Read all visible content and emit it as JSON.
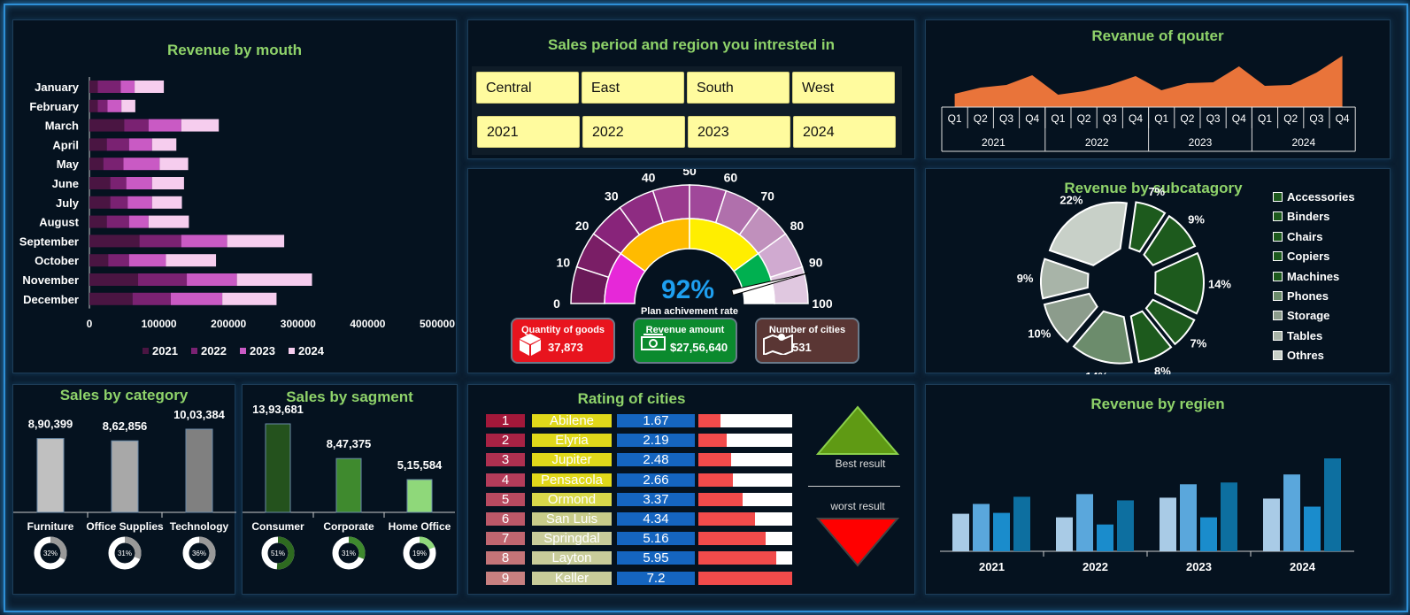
{
  "revenue_by_month": {
    "title": "Revenue by mouth",
    "months": [
      "January",
      "February",
      "March",
      "April",
      "May",
      "June",
      "July",
      "August",
      "September",
      "October",
      "November",
      "December"
    ],
    "series": [
      {
        "name": "2021",
        "color": "#4a1542",
        "values": [
          12000,
          12000,
          50000,
          25000,
          20000,
          30000,
          30000,
          25000,
          72000,
          27000,
          70000,
          62000
        ]
      },
      {
        "name": "2022",
        "color": "#7a2272",
        "values": [
          33000,
          14000,
          35000,
          32000,
          29000,
          23000,
          25000,
          32000,
          60000,
          30000,
          70000,
          55000
        ]
      },
      {
        "name": "2023",
        "color": "#c95ac4",
        "values": [
          20000,
          20000,
          47000,
          33000,
          52000,
          37000,
          35000,
          28000,
          66000,
          53000,
          72000,
          74000
        ]
      },
      {
        "name": "2024",
        "color": "#f6cdee",
        "values": [
          42000,
          20000,
          54000,
          35000,
          41000,
          46000,
          43000,
          58000,
          82000,
          72000,
          108000,
          78000
        ]
      }
    ],
    "ticks": [
      "0",
      "100000",
      "200000",
      "300000",
      "400000",
      "500000"
    ],
    "xmax": 500000
  },
  "slicer": {
    "title": "Sales period and region you intrested in",
    "regions": [
      "Central",
      "East",
      "South",
      "West"
    ],
    "years": [
      "2021",
      "2022",
      "2023",
      "2024"
    ]
  },
  "quarter": {
    "title": "Revanue of qouter",
    "color": "#e9743a",
    "quarters": [
      "Q1",
      "Q2",
      "Q3",
      "Q4",
      "Q1",
      "Q2",
      "Q3",
      "Q4",
      "Q1",
      "Q2",
      "Q3",
      "Q4",
      "Q1",
      "Q2",
      "Q3",
      "Q4"
    ],
    "years": [
      "2021",
      "2022",
      "2023",
      "2024"
    ],
    "values": [
      15,
      22,
      25,
      36,
      14,
      18,
      25,
      35,
      19,
      27,
      28,
      46,
      24,
      25,
      39,
      58
    ]
  },
  "gauge": {
    "ticks": [
      "0",
      "10",
      "20",
      "30",
      "40",
      "50",
      "60",
      "70",
      "80",
      "90",
      "100"
    ],
    "value_text": "92%",
    "value": 92,
    "caption": "Plan achivement rate"
  },
  "kpis": [
    {
      "title": "Quantity of goods",
      "value": "37,873",
      "bg": "#e8141e",
      "icon": "box-icon"
    },
    {
      "title": "Revenue amount",
      "value": "$27,56,640",
      "bg": "#0b8a2e",
      "icon": "cash-icon"
    },
    {
      "title": "Number of cities",
      "value": "531",
      "bg": "#5a3634",
      "icon": "map-icon"
    }
  ],
  "subcategory": {
    "title": "Revenue by  subcatagory",
    "legend": [
      "Accessories",
      "Binders",
      "Chairs",
      "Copiers",
      "Machines",
      "Phones",
      "Storage",
      "Tables",
      "Othres"
    ],
    "legend_colors": [
      "#1d5a1d",
      "#1d5a1d",
      "#1d5a1d",
      "#1d5a1d",
      "#1d5a1d",
      "#6c8c6c",
      "#8c9c8c",
      "#a8b4a8",
      "#c8d0c8"
    ],
    "slices": [
      {
        "pct": 7,
        "label": "7%",
        "color": "#1d5a1d"
      },
      {
        "pct": 9,
        "label": "9%",
        "color": "#1d5a1d"
      },
      {
        "pct": 14,
        "label": "14%",
        "color": "#1d5a1d"
      },
      {
        "pct": 7,
        "label": "7%",
        "color": "#1d5a1d"
      },
      {
        "pct": 8,
        "label": "8%",
        "color": "#1d5a1d"
      },
      {
        "pct": 14,
        "label": "14%",
        "color": "#6c8c6c"
      },
      {
        "pct": 10,
        "label": "10%",
        "color": "#8c9c8c"
      },
      {
        "pct": 9,
        "label": "9%",
        "color": "#a8b4a8"
      },
      {
        "pct": 22,
        "label": "22%",
        "color": "#c8d0c8"
      }
    ]
  },
  "category": {
    "title": "Sales by category",
    "items": [
      {
        "name": "Furniture",
        "value": 890399,
        "label": "8,90,399",
        "color": "#c0c0c0",
        "pct": "32%",
        "pct_val": 32
      },
      {
        "name": "Office Supplies",
        "value": 862856,
        "label": "8,62,856",
        "color": "#a8a8a8",
        "pct": "31%",
        "pct_val": 31
      },
      {
        "name": "Technology",
        "value": 1003384,
        "label": "10,03,384",
        "color": "#808080",
        "pct": "36%",
        "pct_val": 36
      }
    ],
    "max": 1003384
  },
  "segment": {
    "title": "Sales by sagment",
    "items": [
      {
        "name": "Consumer",
        "value": 1393681,
        "label": "13,93,681",
        "color": "#24521d",
        "pct": "51%",
        "pct_val": 51
      },
      {
        "name": "Corporate",
        "value": 847375,
        "label": "8,47,375",
        "color": "#3f8a2e",
        "pct": "31%",
        "pct_val": 31
      },
      {
        "name": "Home Office",
        "value": 515584,
        "label": "5,15,584",
        "color": "#8fd87a",
        "pct": "19%",
        "pct_val": 19
      }
    ],
    "max": 1393681
  },
  "rating": {
    "title": "Rating of cities",
    "rows": [
      {
        "rank": "1",
        "city": "Abilene",
        "value": "1.67",
        "v": 1.67,
        "rank_bg": "#a3183a",
        "city_bg": "#e0d81a"
      },
      {
        "rank": "2",
        "city": "Elyria",
        "value": "2.19",
        "v": 2.19,
        "rank_bg": "#a82244",
        "city_bg": "#e0d81a"
      },
      {
        "rank": "3",
        "city": "Jupiter",
        "value": "2.48",
        "v": 2.48,
        "rank_bg": "#ae3050",
        "city_bg": "#e0d81a"
      },
      {
        "rank": "4",
        "city": "Pensacola",
        "value": "2.66",
        "v": 2.66,
        "rank_bg": "#b43c5a",
        "city_bg": "#e0d81a"
      },
      {
        "rank": "5",
        "city": "Ormond",
        "value": "3.37",
        "v": 3.37,
        "rank_bg": "#b84a60",
        "city_bg": "#d8d84a"
      },
      {
        "rank": "6",
        "city": "San Luis",
        "value": "4.34",
        "v": 4.34,
        "rank_bg": "#bc5868",
        "city_bg": "#c8cc8a"
      },
      {
        "rank": "7",
        "city": "Springdal",
        "value": "5.16",
        "v": 5.16,
        "rank_bg": "#c06670",
        "city_bg": "#c8cc9a"
      },
      {
        "rank": "8",
        "city": "Layton",
        "value": "5.95",
        "v": 5.95,
        "rank_bg": "#c47478",
        "city_bg": "#c8cc9a"
      },
      {
        "rank": "9",
        "city": "Keller",
        "value": "7.2",
        "v": 7.2,
        "rank_bg": "#c88080",
        "city_bg": "#c8cc9a"
      }
    ],
    "max": 7.2,
    "best_label": "Best result",
    "worst_label": "worst result"
  },
  "region": {
    "title": "Revenue by regien",
    "years": [
      "2021",
      "2022",
      "2023",
      "2024"
    ],
    "colors": [
      "#a9cbe6",
      "#5aa7dc",
      "#1a8ccc",
      "#0d6fa0"
    ],
    "values": [
      [
        42,
        53,
        43,
        61
      ],
      [
        38,
        64,
        30,
        57
      ],
      [
        60,
        75,
        38,
        77
      ],
      [
        59,
        86,
        50,
        104
      ]
    ]
  }
}
